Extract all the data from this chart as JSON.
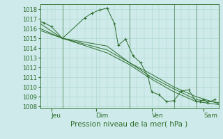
{
  "bg_color": "#ceeaea",
  "grid_color": "#a8d5c8",
  "line_color": "#2d6e2d",
  "marker_color": "#2d6e2d",
  "xlabel": "Pression niveau de la mer( hPa )",
  "xlabel_fontsize": 7.5,
  "ylabel_fontsize": 6,
  "tick_fontsize": 6.5,
  "ylim": [
    1007.8,
    1018.5
  ],
  "yticks": [
    1008,
    1009,
    1010,
    1011,
    1012,
    1013,
    1014,
    1015,
    1016,
    1017,
    1018
  ],
  "xlim": [
    0,
    24
  ],
  "xtick_positions": [
    1.5,
    7.5,
    15,
    22
  ],
  "xtick_labels": [
    "Jeu",
    "Dim",
    "Ven",
    "Sam"
  ],
  "vline_positions": [
    3,
    12,
    18,
    21
  ],
  "series1_x": [
    0.0,
    0.5,
    1.5,
    3.0,
    6.0,
    7.0,
    8.0,
    9.0,
    10.0,
    10.5,
    11.5,
    12.5,
    13.5,
    14.5,
    15.0,
    16.0,
    17.0,
    18.0,
    19.0,
    20.0,
    21.0,
    21.5,
    22.0,
    22.5,
    23.5
  ],
  "series1_y": [
    1016.7,
    1016.6,
    1016.2,
    1015.0,
    1017.1,
    1017.6,
    1017.9,
    1018.1,
    1016.5,
    1014.3,
    1014.9,
    1013.2,
    1012.5,
    1011.1,
    1009.5,
    1009.2,
    1008.5,
    1008.6,
    1009.6,
    1009.7,
    1008.5,
    1008.5,
    1008.7,
    1008.4,
    1008.7
  ],
  "series2_x": [
    0,
    3,
    9,
    12,
    15,
    18,
    21,
    24
  ],
  "series2_y": [
    1016.5,
    1015.0,
    1014.2,
    1012.5,
    1011.3,
    1010.0,
    1009.0,
    1008.3
  ],
  "series3_x": [
    0,
    3,
    9,
    12,
    15,
    18,
    21,
    24
  ],
  "series3_y": [
    1016.0,
    1015.0,
    1013.8,
    1012.5,
    1011.0,
    1009.8,
    1008.7,
    1008.4
  ],
  "series4_x": [
    0,
    3,
    9,
    12,
    15,
    18,
    21,
    24
  ],
  "series4_y": [
    1015.8,
    1015.0,
    1013.5,
    1012.3,
    1010.8,
    1009.5,
    1008.5,
    1008.2
  ]
}
